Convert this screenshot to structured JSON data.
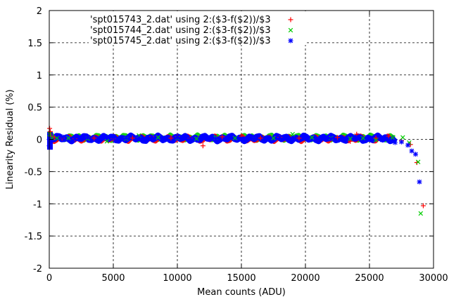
{
  "chart_data": {
    "type": "scatter",
    "title": "",
    "xlabel": "Mean counts (ADU)",
    "ylabel": "Linearity Residual (%)",
    "xlim": [
      0,
      30000
    ],
    "ylim": [
      -2,
      2
    ],
    "xticks": [
      0,
      5000,
      10000,
      15000,
      20000,
      25000,
      30000
    ],
    "yticks": [
      -2,
      -1.5,
      -1,
      -0.5,
      0,
      0.5,
      1,
      1.5,
      2
    ],
    "xtick_labels": [
      "0",
      "5000",
      "10000",
      "15000",
      "20000",
      "25000",
      "30000"
    ],
    "ytick_labels": [
      "-2",
      "-1.5",
      "-1",
      "-0.5",
      "0",
      "0.5",
      "1",
      "1.5",
      "2"
    ],
    "grid": true,
    "legend_position": "top",
    "series": [
      {
        "name": "'spt015743_2.dat' using 2:($3-f($2))/$3",
        "color": "#ff0000",
        "marker": "plus",
        "points": [
          [
            30,
            0.17
          ],
          [
            80,
            0.12
          ],
          [
            150,
            0.05
          ],
          [
            400,
            0.03
          ],
          [
            1000,
            0.02
          ],
          [
            2000,
            0.01
          ],
          [
            3500,
            0.02
          ],
          [
            5000,
            0.01
          ],
          [
            6500,
            0.02
          ],
          [
            8000,
            0.04
          ],
          [
            9500,
            0.02
          ],
          [
            10000,
            0.04
          ],
          [
            11000,
            0.02
          ],
          [
            12000,
            -0.1
          ],
          [
            13500,
            0.04
          ],
          [
            15000,
            0.05
          ],
          [
            16500,
            0.02
          ],
          [
            18000,
            0.03
          ],
          [
            19500,
            0.02
          ],
          [
            21000,
            0.0
          ],
          [
            22500,
            0.03
          ],
          [
            23500,
            -0.03
          ],
          [
            24000,
            0.08
          ],
          [
            25500,
            0.02
          ],
          [
            26500,
            0.05
          ],
          [
            27500,
            -0.02
          ],
          [
            28200,
            -0.08
          ],
          [
            28700,
            -0.36
          ],
          [
            29200,
            -1.03
          ]
        ]
      },
      {
        "name": "'spt015744_2.dat' using 2:($3-f($2))/$3",
        "color": "#00cc00",
        "marker": "x",
        "points": [
          [
            40,
            0.08
          ],
          [
            200,
            0.02
          ],
          [
            600,
            0.02
          ],
          [
            1500,
            0.02
          ],
          [
            3000,
            0.01
          ],
          [
            4500,
            -0.03
          ],
          [
            6000,
            0.01
          ],
          [
            7000,
            0.06
          ],
          [
            8500,
            0.03
          ],
          [
            10000,
            0.02
          ],
          [
            11500,
            0.01
          ],
          [
            13000,
            0.03
          ],
          [
            14500,
            0.02
          ],
          [
            16000,
            0.01
          ],
          [
            17500,
            0.02
          ],
          [
            19000,
            0.08
          ],
          [
            20500,
            0.03
          ],
          [
            22000,
            0.02
          ],
          [
            23500,
            0.01
          ],
          [
            24500,
            0.02
          ],
          [
            25500,
            -0.01
          ],
          [
            26800,
            0.03
          ],
          [
            27600,
            0.03
          ],
          [
            28100,
            -0.05
          ],
          [
            28800,
            -0.35
          ],
          [
            29000,
            -1.15
          ]
        ]
      },
      {
        "name": "'spt015745_2.dat' using 2:($3-f($2))/$3",
        "color": "#0000ff",
        "marker": "star",
        "points": [
          [
            0,
            0.0
          ],
          [
            0,
            -0.1
          ],
          [
            1000,
            0.04
          ],
          [
            2000,
            0.02
          ],
          [
            3000,
            0.03
          ],
          [
            4000,
            0.02
          ],
          [
            5000,
            0.03
          ],
          [
            6000,
            0.02
          ],
          [
            7000,
            0.02
          ],
          [
            8000,
            0.03
          ],
          [
            9000,
            0.02
          ],
          [
            10000,
            0.03
          ],
          [
            11000,
            0.0
          ],
          [
            12000,
            0.02
          ],
          [
            13000,
            0.01
          ],
          [
            14000,
            0.03
          ],
          [
            15000,
            0.0
          ],
          [
            16000,
            0.01
          ],
          [
            17000,
            0.0
          ],
          [
            18000,
            0.02
          ],
          [
            19000,
            0.0
          ],
          [
            20000,
            0.01
          ],
          [
            21000,
            0.0
          ],
          [
            22000,
            0.01
          ],
          [
            23000,
            0.0
          ],
          [
            24000,
            0.02
          ],
          [
            25000,
            0.0
          ],
          [
            26000,
            -0.01
          ],
          [
            26500,
            -0.02
          ],
          [
            27000,
            -0.05
          ],
          [
            27500,
            -0.04
          ],
          [
            28000,
            -0.09
          ],
          [
            28300,
            -0.18
          ],
          [
            28600,
            -0.23
          ],
          [
            28900,
            -0.66
          ]
        ]
      }
    ]
  }
}
